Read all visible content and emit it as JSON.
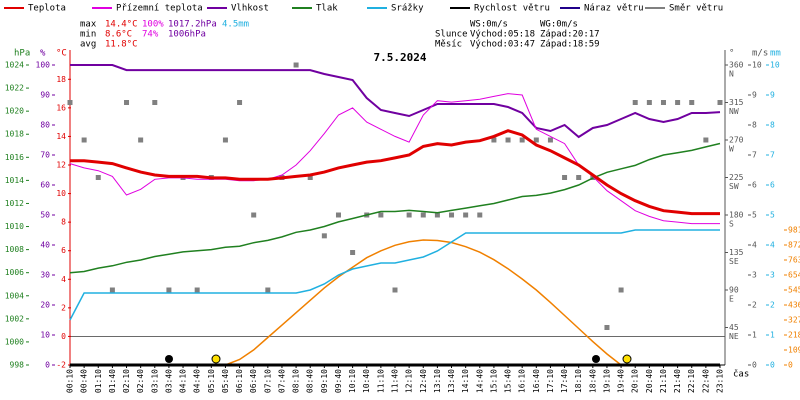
{
  "chart_data": {
    "type": "line",
    "title": "7.5.2024",
    "x_label": "čas",
    "x": [
      "00:10",
      "00:40",
      "01:10",
      "01:40",
      "02:10",
      "02:40",
      "03:10",
      "03:40",
      "04:10",
      "04:40",
      "05:10",
      "05:40",
      "06:10",
      "06:40",
      "07:10",
      "07:40",
      "08:10",
      "08:40",
      "09:10",
      "09:40",
      "10:10",
      "10:40",
      "11:10",
      "11:40",
      "12:10",
      "12:40",
      "13:10",
      "13:40",
      "14:10",
      "14:40",
      "15:10",
      "15:40",
      "16:10",
      "16:40",
      "17:10",
      "17:40",
      "18:10",
      "18:40",
      "19:10",
      "19:40",
      "20:10",
      "20:40",
      "21:10",
      "21:40",
      "22:10",
      "22:40",
      "23:10"
    ],
    "axes": {
      "pressure": {
        "unit": "hPa",
        "color": "#208020",
        "ylim": [
          998,
          1024
        ],
        "yticks": [
          998,
          1000,
          1002,
          1004,
          1006,
          1008,
          1010,
          1012,
          1014,
          1016,
          1018,
          1020,
          1022,
          1024
        ]
      },
      "humidity": {
        "unit": "%",
        "color": "#7000a0",
        "ylim": [
          0,
          100
        ],
        "yticks": [
          0,
          10,
          20,
          30,
          40,
          50,
          60,
          70,
          80,
          90,
          100
        ]
      },
      "temp": {
        "unit": "°C",
        "color": "#e00000",
        "ylim": [
          -2,
          19
        ],
        "yticks": [
          -2,
          0,
          2,
          4,
          6,
          8,
          10,
          12,
          14,
          16,
          18
        ]
      },
      "direction": {
        "unit": "°",
        "color": "#555555",
        "ylim": [
          0,
          360
        ],
        "yticks": [
          45,
          90,
          135,
          180,
          225,
          270,
          315,
          360
        ],
        "compass": [
          "NE",
          "E",
          "SE",
          "S",
          "SW",
          "W",
          "NW",
          "N"
        ]
      },
      "speed": {
        "unit": "m/s",
        "color": "#555555",
        "ylim": [
          0,
          10
        ],
        "yticks": [
          0,
          1,
          2,
          3,
          4,
          5,
          6,
          7,
          8,
          9,
          10
        ]
      },
      "precip": {
        "unit": "mm",
        "color": "#20b0e0",
        "ylim": [
          0,
          10
        ],
        "yticks": [
          0,
          1,
          2,
          3,
          4,
          5,
          6,
          7,
          8,
          9,
          10
        ]
      },
      "solar": {
        "color": "#f08000",
        "ylim": [
          0,
          2180
        ],
        "yticks": [
          0,
          109,
          218,
          327,
          436,
          545,
          654,
          763,
          872,
          981
        ]
      }
    },
    "series": [
      {
        "name": "Teplota",
        "color": "#e00000",
        "axis": "temp",
        "width": 3,
        "values": [
          12.3,
          12.3,
          12.2,
          12.1,
          11.8,
          11.5,
          11.3,
          11.2,
          11.2,
          11.2,
          11.1,
          11.1,
          11.0,
          11.0,
          11.0,
          11.1,
          11.2,
          11.3,
          11.5,
          11.8,
          12.0,
          12.2,
          12.3,
          12.5,
          12.7,
          13.3,
          13.5,
          13.4,
          13.6,
          13.7,
          14.0,
          14.4,
          14.1,
          13.4,
          13.0,
          12.5,
          12.0,
          11.3,
          10.6,
          10.0,
          9.5,
          9.1,
          8.8,
          8.7,
          8.6,
          8.6,
          8.6
        ]
      },
      {
        "name": "Přízemní teplota",
        "color": "#e000e0",
        "axis": "temp",
        "width": 1,
        "values": [
          12.1,
          11.8,
          11.6,
          11.2,
          9.9,
          10.3,
          11.0,
          11.1,
          11.1,
          11.0,
          11.0,
          11.0,
          10.9,
          10.9,
          11.0,
          11.3,
          12.0,
          13.0,
          14.2,
          15.5,
          16.0,
          15.0,
          14.5,
          14.0,
          13.6,
          15.5,
          16.5,
          16.4,
          16.5,
          16.6,
          16.8,
          17.0,
          16.9,
          14.5,
          14.0,
          13.5,
          12.0,
          11.2,
          10.2,
          9.5,
          8.8,
          8.4,
          8.1,
          8.0,
          7.9,
          7.9,
          7.9
        ]
      },
      {
        "name": "Vlhkost",
        "color": "#7000a0",
        "axis": "humidity",
        "width": 2,
        "values": [
          100,
          100,
          100,
          100,
          98.3,
          98.3,
          98.3,
          98.3,
          98.3,
          98.3,
          98.3,
          98.3,
          98.3,
          98.3,
          98.3,
          98.3,
          98.3,
          98.3,
          97,
          96,
          95,
          89,
          85,
          84,
          83,
          85,
          87,
          87,
          87,
          87,
          87,
          86,
          84,
          79,
          78,
          80,
          76,
          79,
          80,
          82,
          84,
          82,
          81,
          82,
          84,
          84,
          84.3
        ]
      },
      {
        "name": "Tlak",
        "color": "#208020",
        "axis": "pressure",
        "width": 1.5,
        "values": [
          1006,
          1006.1,
          1006.4,
          1006.6,
          1006.9,
          1007.1,
          1007.4,
          1007.6,
          1007.8,
          1007.9,
          1008,
          1008.2,
          1008.3,
          1008.6,
          1008.8,
          1009.1,
          1009.5,
          1009.7,
          1010,
          1010.4,
          1010.7,
          1011,
          1011.3,
          1011.3,
          1011.4,
          1011.3,
          1011.2,
          1011.4,
          1011.6,
          1011.8,
          1012,
          1012.3,
          1012.6,
          1012.7,
          1012.9,
          1013.2,
          1013.6,
          1014.2,
          1014.7,
          1015,
          1015.3,
          1015.8,
          1016.2,
          1016.4,
          1016.6,
          1016.9,
          1017.2
        ]
      },
      {
        "name": "Srážky",
        "color": "#20b0e0",
        "axis": "precip",
        "width": 1.5,
        "values": [
          1.5,
          2.4,
          2.4,
          2.4,
          2.4,
          2.4,
          2.4,
          2.4,
          2.4,
          2.4,
          2.4,
          2.4,
          2.4,
          2.4,
          2.4,
          2.4,
          2.4,
          2.5,
          2.7,
          3.0,
          3.2,
          3.3,
          3.4,
          3.4,
          3.5,
          3.6,
          3.8,
          4.1,
          4.4,
          4.4,
          4.4,
          4.4,
          4.4,
          4.4,
          4.4,
          4.4,
          4.4,
          4.4,
          4.4,
          4.4,
          4.5,
          4.5,
          4.5,
          4.5,
          4.5,
          4.5,
          4.5
        ]
      },
      {
        "name": "Rychlost větru",
        "color": "#000000",
        "axis": "speed",
        "width": 3,
        "values": [
          0,
          0,
          0,
          0,
          0,
          0,
          0,
          0,
          0,
          0,
          0,
          0,
          0,
          0,
          0,
          0,
          0,
          0,
          0,
          0,
          0,
          0,
          0,
          0,
          0,
          0,
          0,
          0,
          0,
          0,
          0,
          0,
          0,
          0,
          0,
          0,
          0,
          0,
          0,
          0,
          0,
          0,
          0,
          0,
          0,
          0,
          0
        ]
      },
      {
        "name": "Náraz větru",
        "color": "#20008a",
        "axis": "speed",
        "width": 1,
        "values": [
          0,
          0,
          0,
          0,
          0,
          0,
          0,
          0,
          0,
          0,
          0,
          0,
          0,
          0,
          0,
          0,
          0,
          0,
          0,
          0,
          0,
          0,
          0,
          0,
          0,
          0,
          0,
          0,
          0,
          0,
          0,
          0,
          0,
          0,
          0,
          0,
          0,
          0,
          0,
          0,
          0,
          0,
          0,
          0,
          0,
          0,
          0
        ]
      },
      {
        "name": "Směr větru",
        "color": "#808080",
        "axis": "direction",
        "marker": "square",
        "values": [
          315,
          270,
          225,
          90,
          315,
          270,
          315,
          90,
          225,
          90,
          225,
          270,
          315,
          180,
          90,
          225,
          360,
          225,
          155,
          180,
          135,
          180,
          180,
          90,
          180,
          180,
          180,
          180,
          180,
          180,
          270,
          270,
          270,
          270,
          270,
          225,
          225,
          225,
          45,
          90,
          315,
          315,
          315,
          315,
          315,
          270,
          315
        ]
      }
    ],
    "solar": {
      "axis": "solar",
      "color": "#f08000",
      "values": [
        null,
        null,
        null,
        null,
        null,
        null,
        null,
        null,
        null,
        null,
        null,
        0,
        40,
        110,
        200,
        290,
        380,
        470,
        560,
        640,
        710,
        780,
        830,
        870,
        895,
        908,
        905,
        890,
        860,
        820,
        765,
        700,
        625,
        545,
        455,
        360,
        265,
        170,
        80,
        0,
        null,
        null,
        null,
        null,
        null,
        null,
        null
      ]
    },
    "stats": {
      "max": {
        "label": "max",
        "temp": "14.4°C",
        "humidity": "100%",
        "pressure": "1017.2hPa",
        "precip": "4.5mm"
      },
      "min": {
        "label": "min",
        "temp": "8.6°C",
        "humidity": "74%",
        "pressure": "1006hPa"
      },
      "avg": {
        "label": "avg",
        "temp": "11.8°C"
      }
    },
    "info": {
      "ws": "WS:0m/s",
      "wg": "WG:0m/s",
      "sun": {
        "label": "Slunce",
        "rise": "Východ:05:18",
        "set": "Západ:20:17"
      },
      "moon": {
        "label": "Měsíc",
        "rise": "Východ:03:47",
        "set": "Západ:18:59"
      }
    }
  }
}
